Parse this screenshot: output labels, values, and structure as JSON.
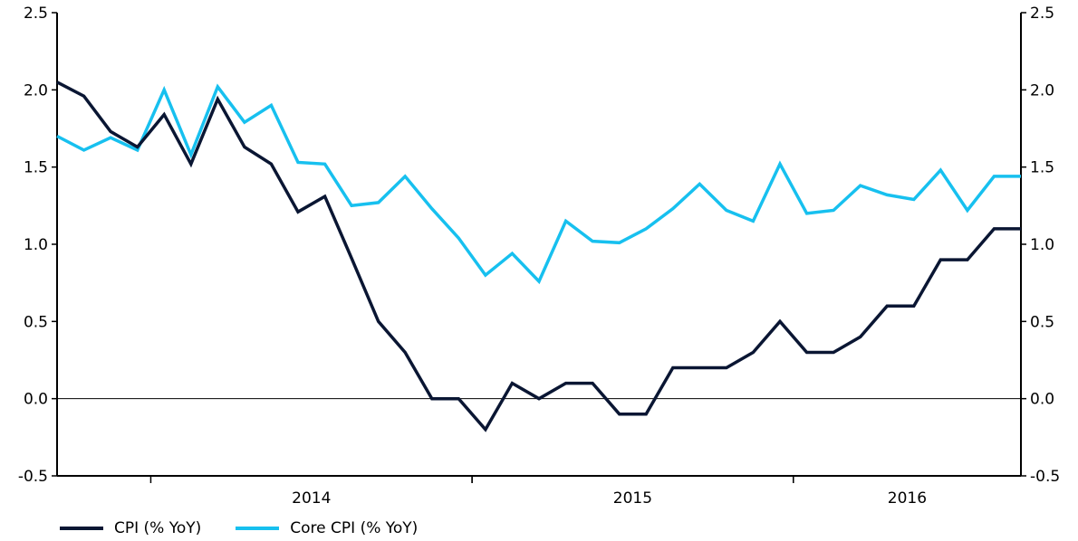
{
  "chart_data": {
    "type": "line",
    "y_ticks": [
      -0.5,
      0.0,
      0.5,
      1.0,
      1.5,
      2.0,
      2.5
    ],
    "y_tick_labels": [
      "-0.5",
      "0.0",
      "0.5",
      "1.0",
      "1.5",
      "2.0",
      "2.5"
    ],
    "ylim": [
      -0.5,
      2.5
    ],
    "x_tick_labels": [
      "2014",
      "2015",
      "2016"
    ],
    "x": [
      "2013-09",
      "2013-10",
      "2013-11",
      "2013-12",
      "2014-01",
      "2014-02",
      "2014-03",
      "2014-04",
      "2014-05",
      "2014-06",
      "2014-07",
      "2014-08",
      "2014-09",
      "2014-10",
      "2014-11",
      "2014-12",
      "2015-01",
      "2015-02",
      "2015-03",
      "2015-04",
      "2015-05",
      "2015-06",
      "2015-07",
      "2015-08",
      "2015-09",
      "2015-10",
      "2015-11",
      "2015-12",
      "2016-01",
      "2016-02",
      "2016-03",
      "2016-04",
      "2016-05",
      "2016-06",
      "2016-07",
      "2016-08",
      "2016-09"
    ],
    "series": [
      {
        "name": "CPI (% YoY)",
        "color": "#0a1633",
        "values": [
          2.05,
          1.96,
          1.73,
          1.63,
          1.84,
          1.52,
          1.94,
          1.63,
          1.52,
          1.21,
          1.31,
          0.91,
          0.5,
          0.3,
          0.0,
          0.0,
          -0.2,
          0.1,
          0.0,
          0.1,
          0.1,
          -0.1,
          -0.1,
          0.2,
          0.2,
          0.2,
          0.3,
          0.5,
          0.3,
          0.3,
          0.4,
          0.6,
          0.6,
          0.9,
          0.9,
          1.1,
          1.1
        ]
      },
      {
        "name": "Core CPI (% YoY)",
        "color": "#17c0ef",
        "values": [
          1.7,
          1.61,
          1.69,
          1.61,
          2.0,
          1.58,
          2.02,
          1.79,
          1.9,
          1.53,
          1.52,
          1.25,
          1.27,
          1.44,
          1.23,
          1.04,
          0.8,
          0.94,
          0.76,
          1.15,
          1.02,
          1.01,
          1.1,
          1.23,
          1.39,
          1.22,
          1.15,
          1.52,
          1.2,
          1.22,
          1.38,
          1.32,
          1.29,
          1.48,
          1.22,
          1.44,
          1.44
        ]
      }
    ],
    "grid": false,
    "zero_line": true,
    "legend_position": "bottom-left"
  }
}
